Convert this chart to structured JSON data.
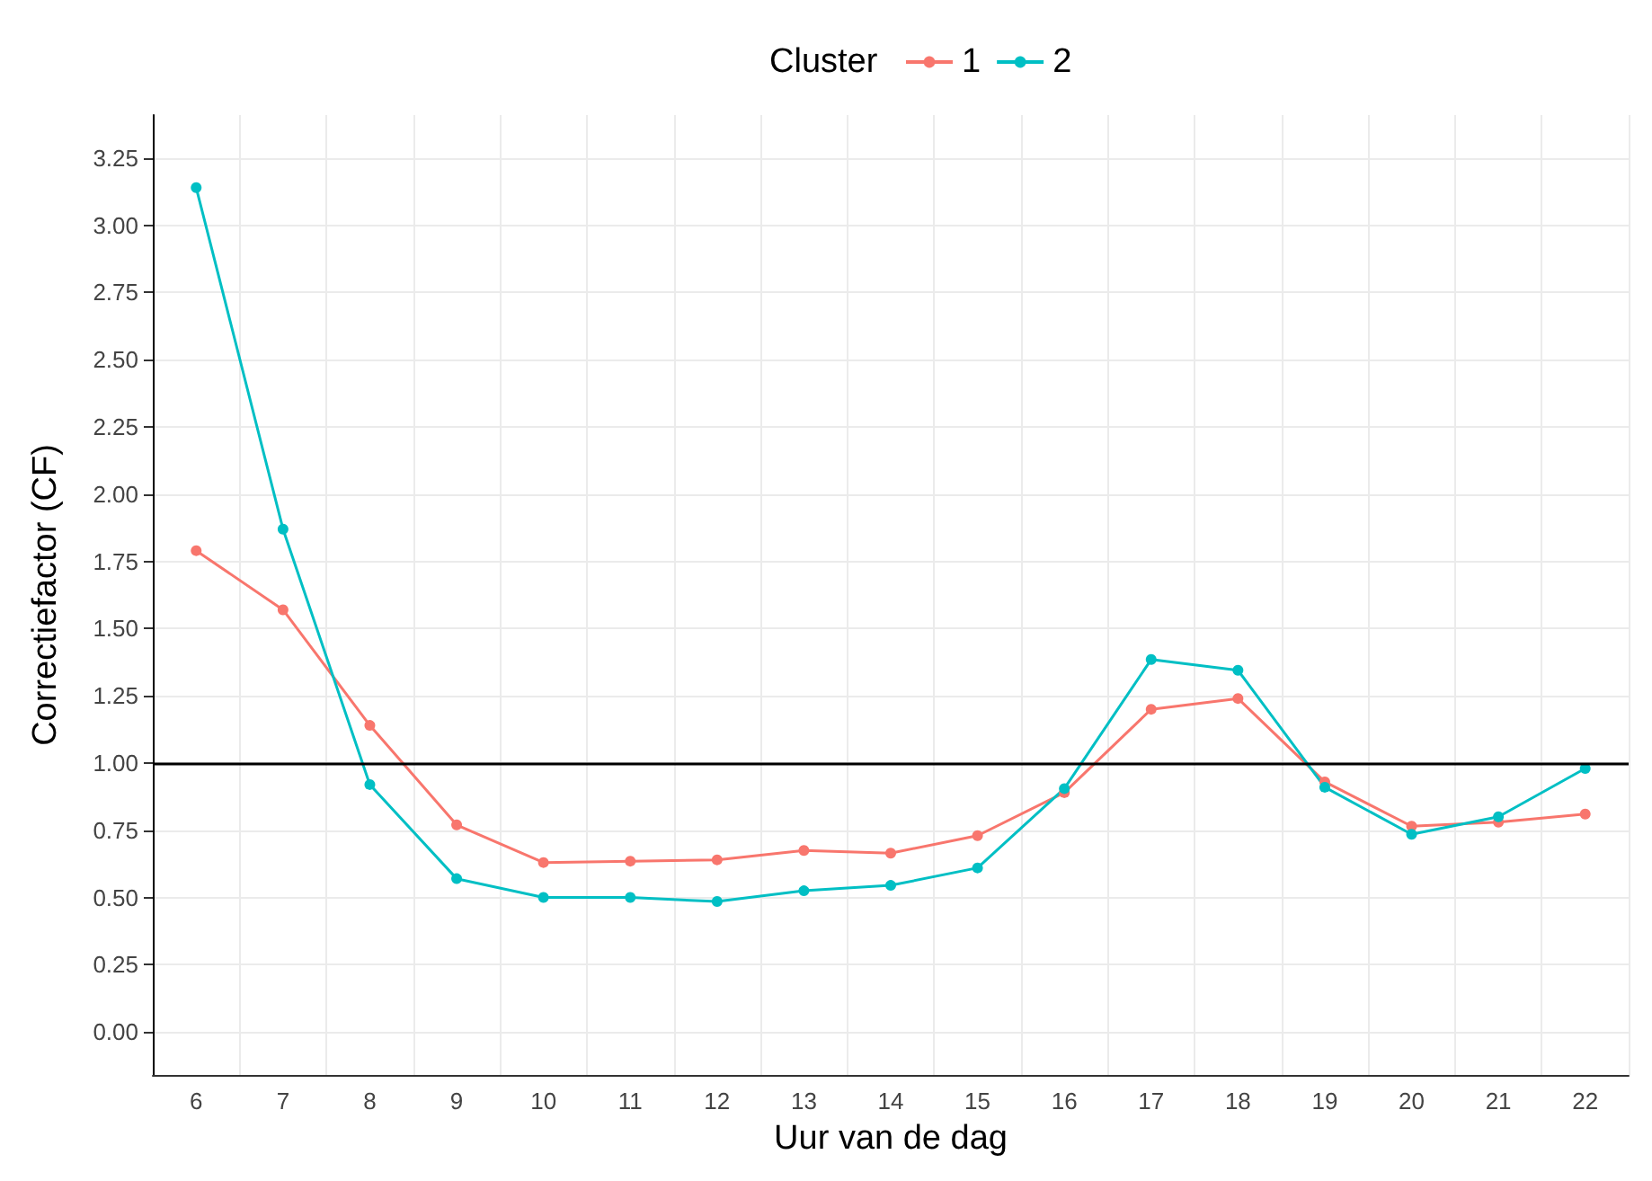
{
  "chart_data": {
    "type": "line",
    "xlabel": "Uur van de dag",
    "ylabel": "Correctiefactor (CF)",
    "legend_title": "Cluster",
    "categories": [
      "6",
      "7",
      "8",
      "9",
      "10",
      "11",
      "12",
      "13",
      "14",
      "15",
      "16",
      "17",
      "18",
      "19",
      "20",
      "21",
      "22"
    ],
    "series": [
      {
        "name": "1",
        "color": "#f8766d",
        "values": [
          1.79,
          1.57,
          1.14,
          0.77,
          0.63,
          0.635,
          0.64,
          0.675,
          0.665,
          0.73,
          0.89,
          1.2,
          1.24,
          0.93,
          0.765,
          0.78,
          0.81
        ]
      },
      {
        "name": "2",
        "color": "#00bfc4",
        "values": [
          3.14,
          1.87,
          0.92,
          0.57,
          0.5,
          0.5,
          0.485,
          0.525,
          0.545,
          0.61,
          0.905,
          1.385,
          1.345,
          0.91,
          0.735,
          0.8,
          0.98
        ]
      }
    ],
    "ylim": [
      -0.16,
      3.41
    ],
    "yticks": [
      {
        "value": 0,
        "label": "0.00"
      },
      {
        "value": 0.25,
        "label": "0.25"
      },
      {
        "value": 0.5,
        "label": "0.50"
      },
      {
        "value": 0.75,
        "label": "0.75"
      },
      {
        "value": 1,
        "label": "1.00"
      },
      {
        "value": 1.25,
        "label": "1.25"
      },
      {
        "value": 1.5,
        "label": "1.50"
      },
      {
        "value": 1.75,
        "label": "1.75"
      },
      {
        "value": 2,
        "label": "2.00"
      },
      {
        "value": 2.25,
        "label": "2.25"
      },
      {
        "value": 2.5,
        "label": "2.50"
      },
      {
        "value": 2.75,
        "label": "2.75"
      },
      {
        "value": 3,
        "label": "3.00"
      },
      {
        "value": 3.25,
        "label": "3.25"
      }
    ],
    "ref_lines": [
      {
        "axis": "y",
        "value": 1,
        "color": "#000000"
      }
    ],
    "grid": true,
    "legend": "top",
    "marker": "circle",
    "line_style": "solid"
  }
}
